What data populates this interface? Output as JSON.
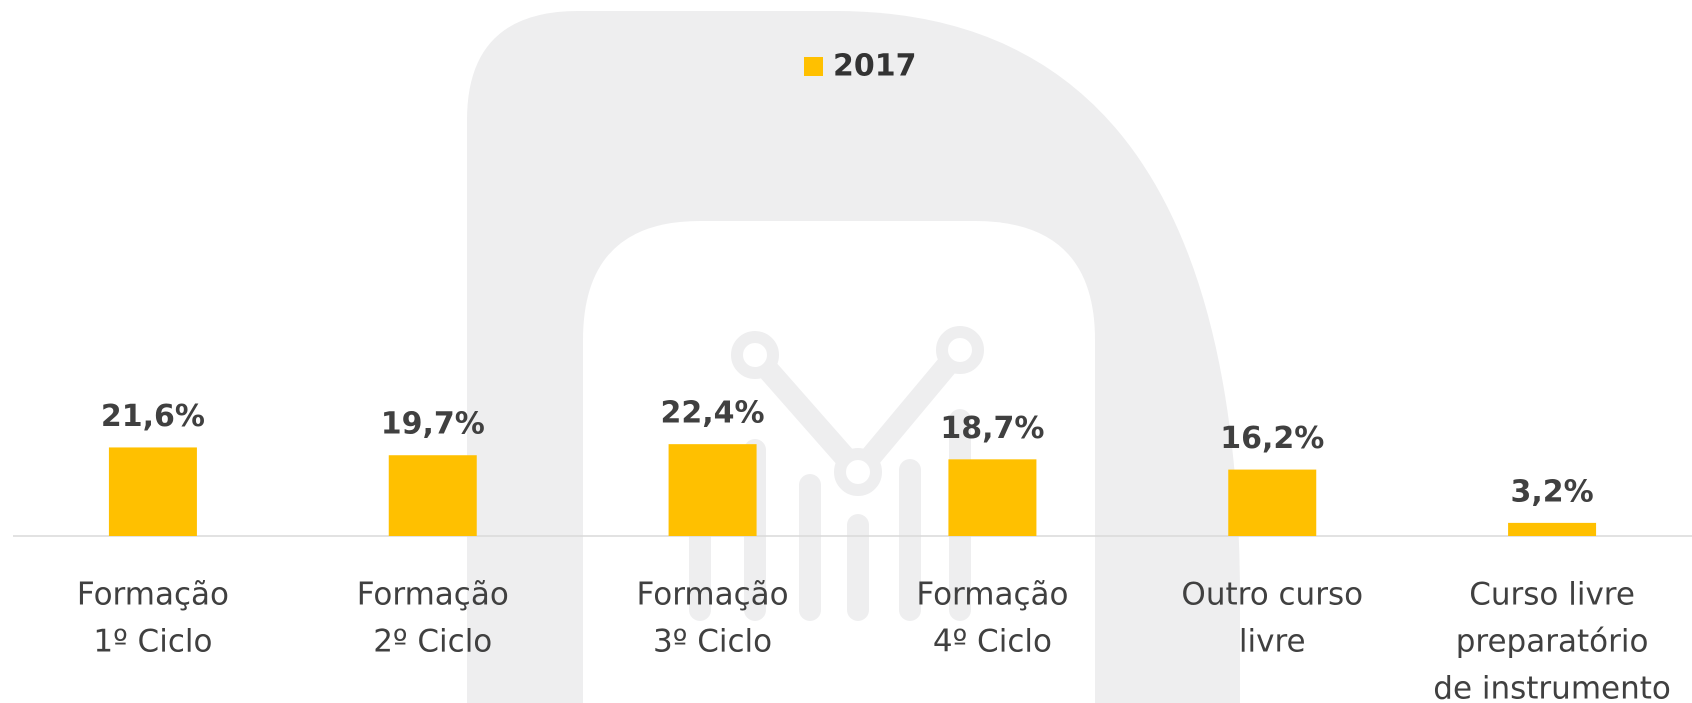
{
  "chart_data": {
    "type": "bar",
    "categories": [
      [
        "Formação",
        "1º Ciclo"
      ],
      [
        "Formação",
        "2º Ciclo"
      ],
      [
        "Formação",
        "3º Ciclo"
      ],
      [
        "Formação",
        "4º Ciclo"
      ],
      [
        "Outro curso",
        "livre"
      ],
      [
        "Curso livre",
        "preparatório",
        "de instrumento"
      ]
    ],
    "series": [
      {
        "name": "2017",
        "color": "#FFC000",
        "values": [
          21.6,
          19.7,
          22.4,
          18.7,
          16.2,
          3.2
        ],
        "value_labels": [
          "21,6%",
          "19,7%",
          "22,4%",
          "18,7%",
          "16,2%",
          "3,2%"
        ]
      }
    ],
    "ylim": [
      0,
      100
    ],
    "legend": "top"
  }
}
